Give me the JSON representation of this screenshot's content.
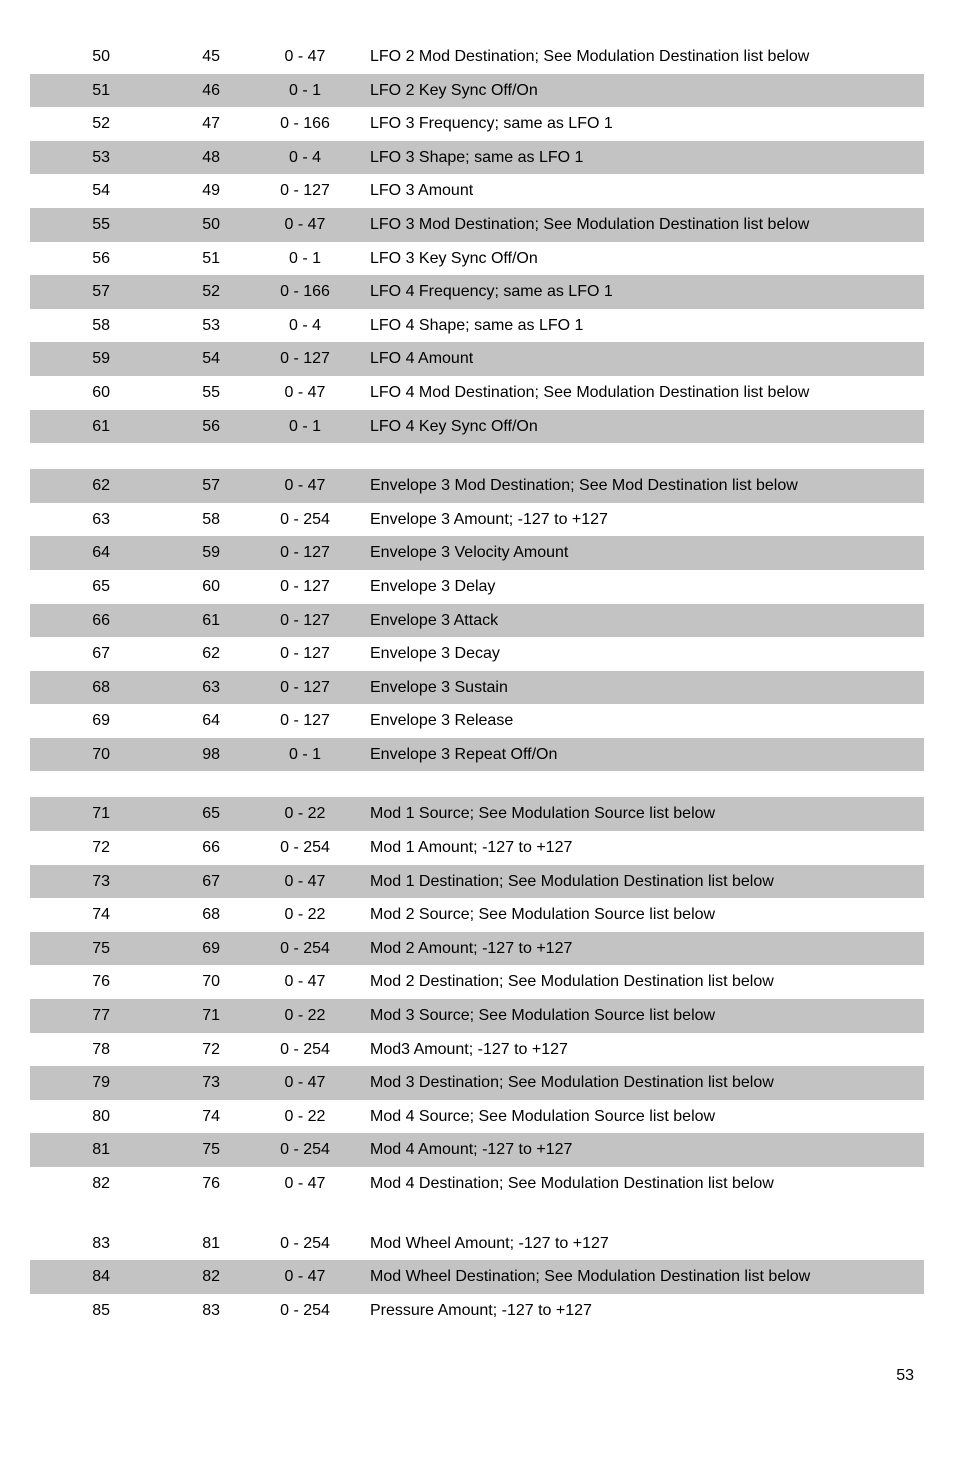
{
  "colors": {
    "row_even": "#ffffff",
    "row_odd": "#c3c3c3",
    "text": "#000000",
    "background": "#ffffff"
  },
  "page_number": "53",
  "sections": [
    {
      "rows": [
        {
          "c1": "50",
          "c2": "45",
          "c3": "0 - 47",
          "c4": "LFO 2 Mod Destination; See Modulation Destination list below",
          "shade": false
        },
        {
          "c1": "51",
          "c2": "46",
          "c3": "0 - 1",
          "c4": "LFO 2 Key Sync Off/On",
          "shade": true
        },
        {
          "c1": "52",
          "c2": "47",
          "c3": "0 - 166",
          "c4": "LFO 3 Frequency; same as LFO 1",
          "shade": false
        },
        {
          "c1": "53",
          "c2": "48",
          "c3": "0 - 4",
          "c4": "LFO 3 Shape; same as LFO 1",
          "shade": true
        },
        {
          "c1": "54",
          "c2": "49",
          "c3": "0 - 127",
          "c4": "LFO 3 Amount",
          "shade": false
        },
        {
          "c1": "55",
          "c2": "50",
          "c3": "0 - 47",
          "c4": "LFO 3 Mod Destination; See Modulation Destination list below",
          "shade": true
        },
        {
          "c1": "56",
          "c2": "51",
          "c3": "0 - 1",
          "c4": "LFO 3 Key Sync Off/On",
          "shade": false
        },
        {
          "c1": "57",
          "c2": "52",
          "c3": "0 - 166",
          "c4": "LFO 4 Frequency; same as LFO 1",
          "shade": true
        },
        {
          "c1": "58",
          "c2": "53",
          "c3": "0 - 4",
          "c4": "LFO 4 Shape; same as LFO 1",
          "shade": false
        },
        {
          "c1": "59",
          "c2": "54",
          "c3": "0 - 127",
          "c4": "LFO 4 Amount",
          "shade": true
        },
        {
          "c1": "60",
          "c2": "55",
          "c3": "0 - 47",
          "c4": "LFO 4 Mod Destination; See Modulation Destination list below",
          "shade": false
        },
        {
          "c1": "61",
          "c2": "56",
          "c3": "0 - 1",
          "c4": "LFO 4 Key Sync Off/On",
          "shade": true
        }
      ]
    },
    {
      "rows": [
        {
          "c1": "62",
          "c2": "57",
          "c3": "0 - 47",
          "c4": "Envelope 3 Mod Destination; See Mod Destination list below",
          "shade": true
        },
        {
          "c1": "63",
          "c2": "58",
          "c3": "0 - 254",
          "c4": "Envelope 3 Amount;  -127 to +127",
          "shade": false
        },
        {
          "c1": "64",
          "c2": "59",
          "c3": "0 - 127",
          "c4": "Envelope 3 Velocity Amount",
          "shade": true
        },
        {
          "c1": "65",
          "c2": "60",
          "c3": "0 - 127",
          "c4": "Envelope 3 Delay",
          "shade": false
        },
        {
          "c1": "66",
          "c2": "61",
          "c3": "0 - 127",
          "c4": "Envelope 3 Attack",
          "shade": true
        },
        {
          "c1": "67",
          "c2": "62",
          "c3": "0 - 127",
          "c4": "Envelope 3 Decay",
          "shade": false
        },
        {
          "c1": "68",
          "c2": "63",
          "c3": "0 - 127",
          "c4": "Envelope 3 Sustain",
          "shade": true
        },
        {
          "c1": "69",
          "c2": "64",
          "c3": "0 - 127",
          "c4": "Envelope 3 Release",
          "shade": false
        },
        {
          "c1": "70",
          "c2": "98",
          "c3": "0 - 1",
          "c4": "Envelope 3 Repeat Off/On",
          "shade": true
        }
      ]
    },
    {
      "rows": [
        {
          "c1": "71",
          "c2": "65",
          "c3": "0 - 22",
          "c4": "Mod 1 Source; See Modulation Source list below",
          "shade": true
        },
        {
          "c1": "72",
          "c2": "66",
          "c3": "0 - 254",
          "c4": "Mod 1 Amount;  -127 to +127",
          "shade": false
        },
        {
          "c1": "73",
          "c2": "67",
          "c3": "0 - 47",
          "c4": "Mod 1 Destination; See Modulation Destination list below",
          "shade": true
        },
        {
          "c1": "74",
          "c2": "68",
          "c3": "0 - 22",
          "c4": "Mod 2 Source; See Modulation Source list below",
          "shade": false
        },
        {
          "c1": "75",
          "c2": "69",
          "c3": "0 - 254",
          "c4": "Mod 2 Amount;  -127 to +127",
          "shade": true
        },
        {
          "c1": "76",
          "c2": "70",
          "c3": "0 - 47",
          "c4": "Mod 2 Destination; See Modulation Destination list below",
          "shade": false
        },
        {
          "c1": "77",
          "c2": "71",
          "c3": "0 - 22",
          "c4": "Mod 3 Source; See Modulation Source list below",
          "shade": true
        },
        {
          "c1": "78",
          "c2": "72",
          "c3": "0 - 254",
          "c4": "Mod3 Amount;  -127 to +127",
          "shade": false
        },
        {
          "c1": "79",
          "c2": "73",
          "c3": "0 - 47",
          "c4": "Mod 3 Destination; See Modulation Destination list below",
          "shade": true
        },
        {
          "c1": "80",
          "c2": "74",
          "c3": "0 - 22",
          "c4": "Mod 4 Source; See Modulation Source list below",
          "shade": false
        },
        {
          "c1": "81",
          "c2": "75",
          "c3": "0 - 254",
          "c4": "Mod 4 Amount;  -127 to +127",
          "shade": true
        },
        {
          "c1": "82",
          "c2": "76",
          "c3": "0 - 47",
          "c4": "Mod 4 Destination; See Modulation Destination list below",
          "shade": false
        }
      ]
    },
    {
      "rows": [
        {
          "c1": "83",
          "c2": "81",
          "c3": "0 - 254",
          "c4": "Mod Wheel Amount;  -127 to +127",
          "shade": false
        },
        {
          "c1": "84",
          "c2": "82",
          "c3": "0 - 47",
          "c4": "Mod Wheel Destination; See Modulation Destination list below",
          "shade": true
        },
        {
          "c1": "85",
          "c2": "83",
          "c3": "0 - 254",
          "c4": "Pressure Amount;  -127 to +127",
          "shade": false
        }
      ]
    }
  ]
}
